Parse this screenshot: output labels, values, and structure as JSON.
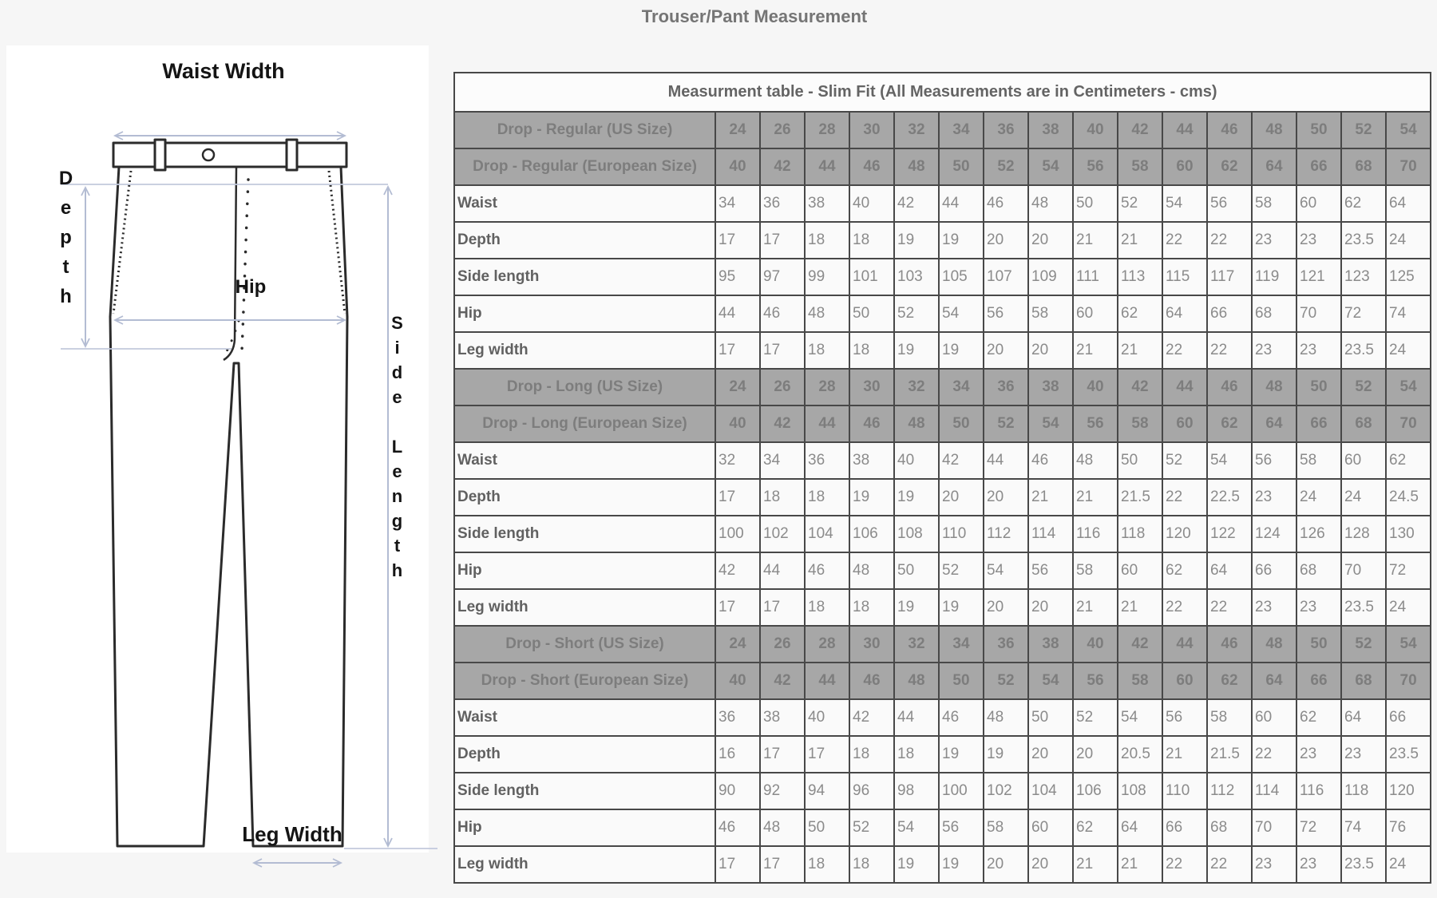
{
  "page": {
    "title": "Trouser/Pant Measurement"
  },
  "diagram": {
    "labels": {
      "waist_width": "Waist Width",
      "depth": "Depth",
      "hip": "Hip",
      "side_length": "Side Length",
      "leg_width": "Leg Width"
    }
  },
  "table": {
    "caption": "Measurment table - Slim Fit (All Measurements are in Centimeters - cms)",
    "sections": [
      {
        "us_label": "Drop - Regular (US Size)",
        "eu_label": "Drop - Regular (European Size)",
        "us_sizes": [
          24,
          26,
          28,
          30,
          32,
          34,
          36,
          38,
          40,
          42,
          44,
          46,
          48,
          50,
          52,
          54
        ],
        "eu_sizes": [
          40,
          42,
          44,
          46,
          48,
          50,
          52,
          54,
          56,
          58,
          60,
          62,
          64,
          66,
          68,
          70
        ],
        "rows": [
          {
            "label": "Waist",
            "values": [
              34,
              36,
              38,
              40,
              42,
              44,
              46,
              48,
              50,
              52,
              54,
              56,
              58,
              60,
              62,
              64
            ]
          },
          {
            "label": "Depth",
            "values": [
              17,
              17,
              18,
              18,
              19,
              19,
              20,
              20,
              21,
              21,
              22,
              22,
              23,
              23,
              23.5,
              24
            ]
          },
          {
            "label": "Side length",
            "values": [
              95,
              97,
              99,
              101,
              103,
              105,
              107,
              109,
              111,
              113,
              115,
              117,
              119,
              121,
              123,
              125
            ]
          },
          {
            "label": "Hip",
            "values": [
              44,
              46,
              48,
              50,
              52,
              54,
              56,
              58,
              60,
              62,
              64,
              66,
              68,
              70,
              72,
              74
            ]
          },
          {
            "label": "Leg width",
            "values": [
              17,
              17,
              18,
              18,
              19,
              19,
              20,
              20,
              21,
              21,
              22,
              22,
              23,
              23,
              23.5,
              24
            ]
          }
        ]
      },
      {
        "us_label": "Drop - Long (US Size)",
        "eu_label": "Drop - Long (European Size)",
        "us_sizes": [
          24,
          26,
          28,
          30,
          32,
          34,
          36,
          38,
          40,
          42,
          44,
          46,
          48,
          50,
          52,
          54
        ],
        "eu_sizes": [
          40,
          42,
          44,
          46,
          48,
          50,
          52,
          54,
          56,
          58,
          60,
          62,
          64,
          66,
          68,
          70
        ],
        "rows": [
          {
            "label": "Waist",
            "values": [
              32,
              34,
              36,
              38,
              40,
              42,
              44,
              46,
              48,
              50,
              52,
              54,
              56,
              58,
              60,
              62
            ]
          },
          {
            "label": "Depth",
            "values": [
              17,
              18,
              18,
              19,
              19,
              20,
              20,
              21,
              21,
              21.5,
              22,
              22.5,
              23,
              24,
              24,
              24.5
            ]
          },
          {
            "label": "Side length",
            "values": [
              100,
              102,
              104,
              106,
              108,
              110,
              112,
              114,
              116,
              118,
              120,
              122,
              124,
              126,
              128,
              130
            ]
          },
          {
            "label": "Hip",
            "values": [
              42,
              44,
              46,
              48,
              50,
              52,
              54,
              56,
              58,
              60,
              62,
              64,
              66,
              68,
              70,
              72
            ]
          },
          {
            "label": "Leg width",
            "values": [
              17,
              17,
              18,
              18,
              19,
              19,
              20,
              20,
              21,
              21,
              22,
              22,
              23,
              23,
              23.5,
              24
            ]
          }
        ]
      },
      {
        "us_label": "Drop - Short (US Size)",
        "eu_label": "Drop - Short (European Size)",
        "us_sizes": [
          24,
          26,
          28,
          30,
          32,
          34,
          36,
          38,
          40,
          42,
          44,
          46,
          48,
          50,
          52,
          54
        ],
        "eu_sizes": [
          40,
          42,
          44,
          46,
          48,
          50,
          52,
          54,
          56,
          58,
          60,
          62,
          64,
          66,
          68,
          70
        ],
        "rows": [
          {
            "label": "Waist",
            "values": [
              36,
              38,
              40,
              42,
              44,
              46,
              48,
              50,
              52,
              54,
              56,
              58,
              60,
              62,
              64,
              66
            ]
          },
          {
            "label": "Depth",
            "values": [
              16,
              17,
              17,
              18,
              18,
              19,
              19,
              20,
              20,
              20.5,
              21,
              21.5,
              22,
              23,
              23,
              23.5
            ]
          },
          {
            "label": "Side length",
            "values": [
              90,
              92,
              94,
              96,
              98,
              100,
              102,
              104,
              106,
              108,
              110,
              112,
              114,
              116,
              118,
              120
            ]
          },
          {
            "label": "Hip",
            "values": [
              46,
              48,
              50,
              52,
              54,
              56,
              58,
              60,
              62,
              64,
              66,
              68,
              70,
              72,
              74,
              76
            ]
          },
          {
            "label": "Leg width",
            "values": [
              17,
              17,
              18,
              18,
              19,
              19,
              20,
              20,
              21,
              21,
              22,
              22,
              23,
              23,
              23.5,
              24
            ]
          }
        ]
      }
    ]
  },
  "colors": {
    "header_bg": "#a7a7a7",
    "header_text": "#7d7d7d",
    "border": "#484848",
    "arrow_accent": "#b3bcd3",
    "row_label_text": "#616161",
    "value_text": "#8b8b8b"
  }
}
